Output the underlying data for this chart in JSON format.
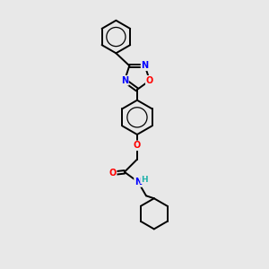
{
  "bg_color": "#e8e8e8",
  "bond_color": "#000000",
  "atom_colors": {
    "N": "#0000ff",
    "O": "#ff0000",
    "H": "#20b2aa",
    "C": "#000000"
  },
  "figsize": [
    3.0,
    3.0
  ],
  "dpi": 100,
  "xlim": [
    0,
    10
  ],
  "ylim": [
    0,
    10
  ]
}
